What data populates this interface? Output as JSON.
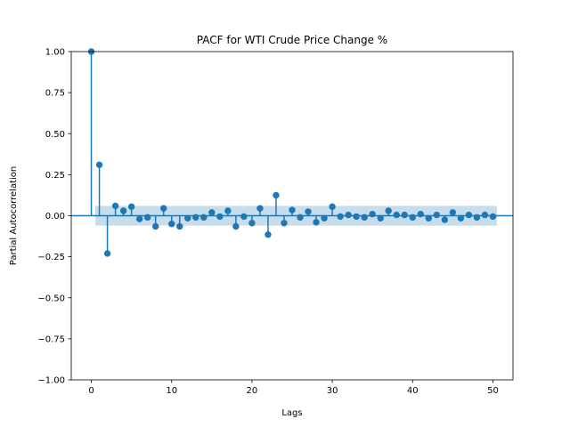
{
  "chart_data": {
    "type": "stem",
    "title": "PACF for WTI Crude Price Change %",
    "xlabel": "Lags",
    "ylabel": "Partial Autocorrelation",
    "xlim": [
      -2.5,
      52.5
    ],
    "ylim": [
      -1.0,
      1.0
    ],
    "xticks": [
      0,
      10,
      20,
      30,
      40,
      50
    ],
    "xtick_labels": [
      "0",
      "10",
      "20",
      "30",
      "40",
      "50"
    ],
    "yticks": [
      -1.0,
      -0.75,
      -0.5,
      -0.25,
      0.0,
      0.25,
      0.5,
      0.75,
      1.0
    ],
    "ytick_labels": [
      "−1.00",
      "−0.75",
      "−0.50",
      "−0.25",
      "0.00",
      "0.25",
      "0.50",
      "0.75",
      "1.00"
    ],
    "grid": false,
    "confidence_band": {
      "lower": -0.06,
      "upper": 0.06,
      "x_start": 0.5,
      "x_end": 50.5
    },
    "colors": {
      "marker": "#1f77b4",
      "band": "#1f77b4",
      "axis": "#000000"
    },
    "lags": [
      0,
      1,
      2,
      3,
      4,
      5,
      6,
      7,
      8,
      9,
      10,
      11,
      12,
      13,
      14,
      15,
      16,
      17,
      18,
      19,
      20,
      21,
      22,
      23,
      24,
      25,
      26,
      27,
      28,
      29,
      30,
      31,
      32,
      33,
      34,
      35,
      36,
      37,
      38,
      39,
      40,
      41,
      42,
      43,
      44,
      45,
      46,
      47,
      48,
      49,
      50
    ],
    "values": [
      1.0,
      0.31,
      -0.23,
      0.06,
      0.03,
      0.055,
      -0.02,
      -0.01,
      -0.065,
      0.045,
      -0.05,
      -0.065,
      -0.015,
      -0.01,
      -0.01,
      0.02,
      -0.005,
      0.03,
      -0.065,
      -0.005,
      -0.045,
      0.045,
      -0.115,
      0.125,
      -0.045,
      0.035,
      -0.01,
      0.025,
      -0.04,
      -0.015,
      0.055,
      -0.005,
      0.005,
      -0.005,
      -0.01,
      0.01,
      -0.015,
      0.03,
      0.005,
      0.005,
      -0.01,
      0.01,
      -0.015,
      0.005,
      -0.025,
      0.02,
      -0.015,
      0.005,
      -0.01,
      0.005,
      -0.005
    ]
  }
}
